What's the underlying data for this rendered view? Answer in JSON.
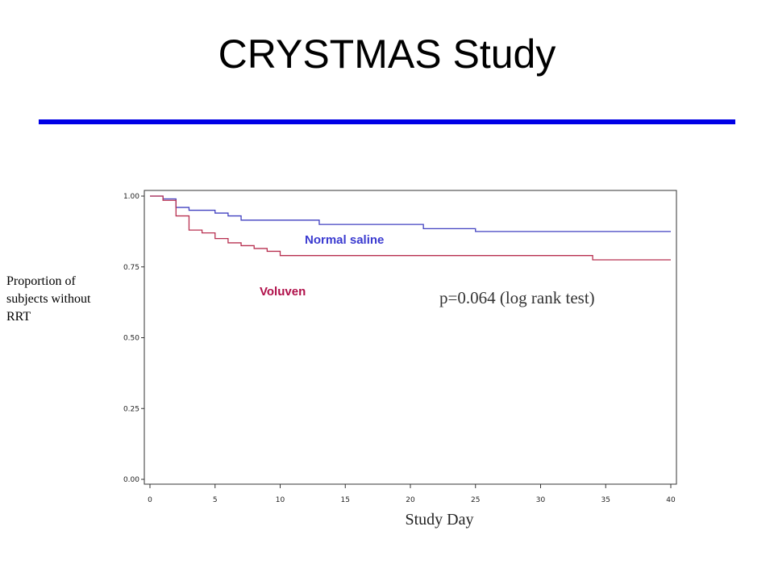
{
  "slide": {
    "title": "CRYSTMAS Study",
    "rule_color": "#0000e6"
  },
  "chart_data": {
    "type": "line",
    "step": true,
    "title": "",
    "xlabel": "Study Day",
    "ylabel": "Proportion of subjects without RRT",
    "xlim": [
      0,
      40
    ],
    "ylim": [
      0,
      1
    ],
    "xticks": [
      0,
      5,
      10,
      15,
      20,
      25,
      30,
      35,
      40
    ],
    "yticks": [
      "0.00",
      "0.25",
      "0.50",
      "0.75",
      "1.00"
    ],
    "grid": false,
    "annotation": "p=0.064 (log rank test)",
    "series": [
      {
        "name": "Normal saline",
        "color": "#4040c0",
        "label_color": "#3a3ad0",
        "x": [
          0,
          1,
          2,
          3,
          5,
          6,
          7,
          13,
          21,
          25,
          40
        ],
        "y": [
          1.0,
          0.99,
          0.96,
          0.95,
          0.94,
          0.93,
          0.915,
          0.9,
          0.885,
          0.875,
          0.875
        ]
      },
      {
        "name": "Voluven",
        "color": "#b83050",
        "label_color": "#b0104a",
        "x": [
          0,
          1,
          2,
          3,
          4,
          5,
          6,
          7,
          8,
          9,
          10,
          34,
          40
        ],
        "y": [
          1.0,
          0.985,
          0.93,
          0.88,
          0.87,
          0.85,
          0.835,
          0.825,
          0.815,
          0.805,
          0.79,
          0.775,
          0.775
        ]
      }
    ]
  }
}
